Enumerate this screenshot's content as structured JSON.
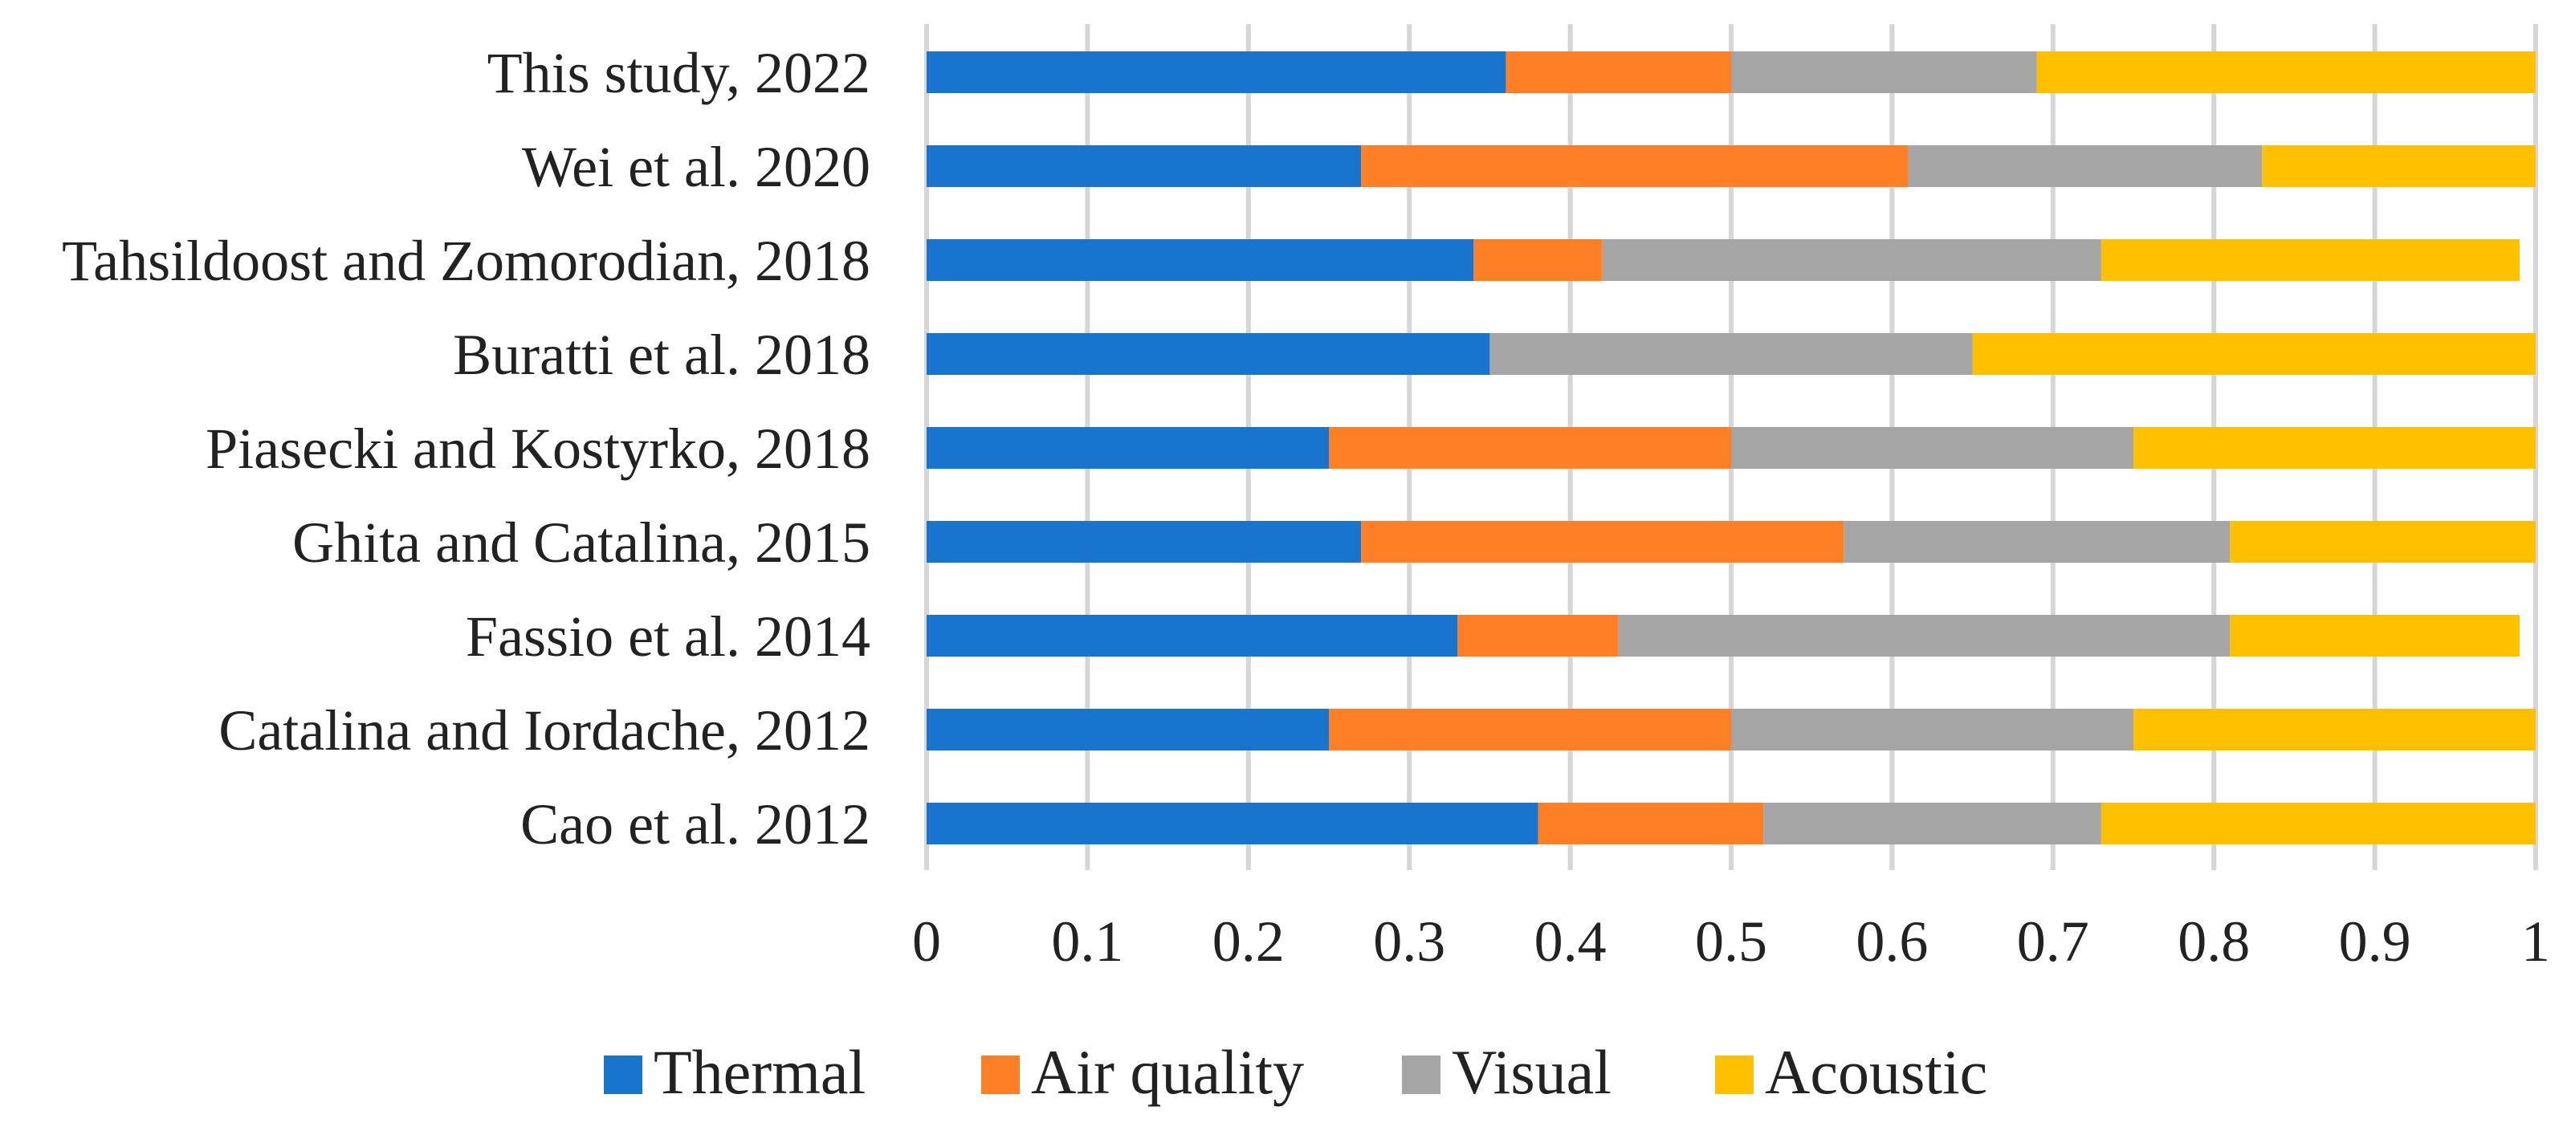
{
  "chart_data": {
    "type": "bar",
    "orientation": "horizontal",
    "stacked": true,
    "categories": [
      "This study, 2022",
      "Wei et al. 2020",
      "Tahsildoost and Zomorodian, 2018",
      "Buratti et al. 2018",
      "Piasecki and Kostyrko, 2018",
      "Ghita and Catalina, 2015",
      "Fassio et al. 2014",
      "Catalina and Iordache, 2012",
      "Cao et al. 2012"
    ],
    "series": [
      {
        "name": "Thermal",
        "color": "#1874CD",
        "values": [
          0.36,
          0.27,
          0.34,
          0.35,
          0.25,
          0.27,
          0.33,
          0.25,
          0.38
        ]
      },
      {
        "name": "Air quality",
        "color": "#FF7F27",
        "values": [
          0.14,
          0.34,
          0.08,
          0.0,
          0.25,
          0.3,
          0.1,
          0.25,
          0.14
        ]
      },
      {
        "name": "Visual",
        "color": "#A5A5A5",
        "values": [
          0.19,
          0.22,
          0.31,
          0.3,
          0.25,
          0.24,
          0.38,
          0.25,
          0.21
        ]
      },
      {
        "name": "Acoustic",
        "color": "#FFC000",
        "values": [
          0.31,
          0.17,
          0.26,
          0.35,
          0.25,
          0.19,
          0.18,
          0.25,
          0.27
        ]
      }
    ],
    "xlim": [
      0,
      1
    ],
    "xticks": [
      "0",
      "0.1",
      "0.2",
      "0.3",
      "0.4",
      "0.5",
      "0.6",
      "0.7",
      "0.8",
      "0.9",
      "1"
    ],
    "grid": true,
    "legend_position": "bottom"
  }
}
